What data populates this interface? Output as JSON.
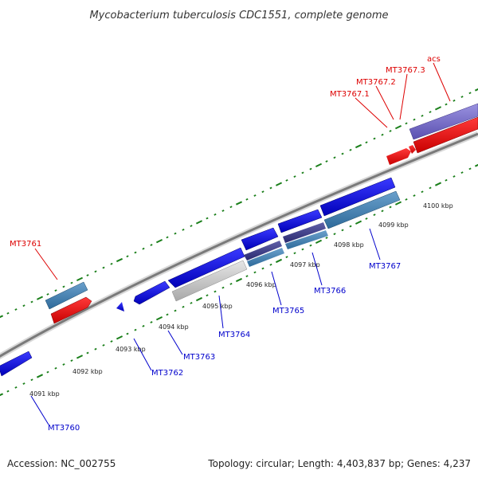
{
  "title": "Mycobacterium tuberculosis CDC1551, complete genome",
  "footer": {
    "accession": "Accession: NC_002755",
    "summary": "Topology: circular; Length: 4,403,837 bp; Genes: 4,237"
  },
  "colors": {
    "tick_minor": "#1a7f1a",
    "tick_major": "#1a6a1a",
    "label_reverse": "#0000cc",
    "label_forward": "#dd0000",
    "backbone": "#888888"
  },
  "kbp_ticks": [
    "4091 kbp",
    "4092 kbp",
    "4093 kbp",
    "4094 kbp",
    "4095 kbp",
    "4096 kbp",
    "4097 kbp",
    "4098 kbp",
    "4099 kbp",
    "4100 kbp"
  ],
  "gene_labels": [
    {
      "name": "MT3760",
      "strand": "reverse"
    },
    {
      "name": "MT3761",
      "strand": "forward"
    },
    {
      "name": "MT3762",
      "strand": "reverse"
    },
    {
      "name": "MT3763",
      "strand": "reverse"
    },
    {
      "name": "MT3764",
      "strand": "reverse"
    },
    {
      "name": "MT3765",
      "strand": "reverse"
    },
    {
      "name": "MT3766",
      "strand": "reverse"
    },
    {
      "name": "MT3767",
      "strand": "reverse"
    },
    {
      "name": "MT3767.1",
      "strand": "forward"
    },
    {
      "name": "MT3767.2",
      "strand": "forward"
    },
    {
      "name": "MT3767.3",
      "strand": "forward"
    },
    {
      "name": "acs",
      "strand": "forward"
    }
  ]
}
